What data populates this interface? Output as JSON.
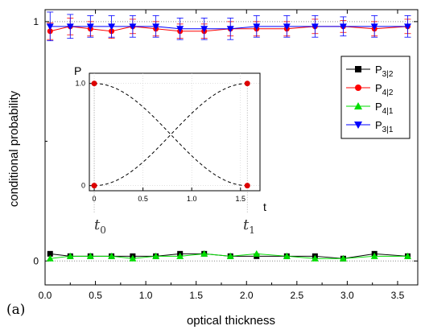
{
  "chart_data": [
    {
      "type": "line",
      "panel_label": "(a)",
      "xlabel": "optical thickness",
      "ylabel": "conditional probability",
      "xlim": [
        0,
        3.7
      ],
      "ylim": [
        -0.1,
        1.05
      ],
      "xticks": [
        "0.0",
        "0.5",
        "1.0",
        "1.5",
        "2.0",
        "2.5",
        "3.0",
        "3.5"
      ],
      "yticks": [
        "0",
        "1"
      ],
      "x": [
        0.05,
        0.25,
        0.45,
        0.66,
        0.87,
        1.1,
        1.34,
        1.58,
        1.84,
        2.1,
        2.4,
        2.68,
        2.96,
        3.27,
        3.6
      ],
      "series": [
        {
          "name": "P",
          "sub": "3|2",
          "color": "#000000",
          "marker": "square",
          "values": [
            0.03,
            0.02,
            0.02,
            0.02,
            0.02,
            0.02,
            0.03,
            0.03,
            0.02,
            0.02,
            0.02,
            0.02,
            0.01,
            0.03,
            0.02
          ]
        },
        {
          "name": "P",
          "sub": "4|2",
          "color": "#ff0000",
          "marker": "circle",
          "values": [
            0.96,
            0.98,
            0.97,
            0.96,
            0.98,
            0.97,
            0.96,
            0.96,
            0.97,
            0.97,
            0.97,
            0.98,
            0.98,
            0.97,
            0.98
          ],
          "err": [
            0.035,
            0.035,
            0.03,
            0.03,
            0.03,
            0.03,
            0.03,
            0.03,
            0.03,
            0.03,
            0.03,
            0.03,
            0.025,
            0.03,
            0.03
          ]
        },
        {
          "name": "P",
          "sub": "4|1",
          "color": "#00dd00",
          "marker": "triangle-up",
          "values": [
            0.01,
            0.02,
            0.02,
            0.02,
            0.01,
            0.02,
            0.02,
            0.03,
            0.02,
            0.03,
            0.02,
            0.01,
            0.01,
            0.02,
            0.02
          ]
        },
        {
          "name": "P",
          "sub": "3|1",
          "color": "#0000ff",
          "marker": "triangle-down",
          "values": [
            0.98,
            0.98,
            0.98,
            0.98,
            0.98,
            0.98,
            0.97,
            0.97,
            0.97,
            0.98,
            0.98,
            0.98,
            0.98,
            0.98,
            0.98
          ],
          "err": [
            0.06,
            0.05,
            0.045,
            0.045,
            0.045,
            0.045,
            0.045,
            0.045,
            0.045,
            0.045,
            0.045,
            0.045,
            0.04,
            0.045,
            0.045
          ]
        }
      ],
      "reference_lines": [
        0,
        1
      ],
      "legend_position": "right"
    },
    {
      "type": "line",
      "role": "inset",
      "ylabel": "P",
      "xlabel": "t",
      "xlim": [
        -0.05,
        1.7
      ],
      "ylim": [
        -0.05,
        1.1
      ],
      "xticks": [
        "0",
        "0.5",
        "1.0",
        "1.5"
      ],
      "yticks": [
        "0",
        "1.0"
      ],
      "t0_label": "t0",
      "t1_label": "t1",
      "t1_value": 1.57,
      "curves": [
        {
          "shape": "cos^2",
          "style": "dashed",
          "color": "#000000"
        },
        {
          "shape": "sin^2",
          "style": "dashed",
          "color": "#000000"
        }
      ],
      "points": [
        {
          "x": 0,
          "y": 1
        },
        {
          "x": 0,
          "y": 0
        },
        {
          "x": 1.57,
          "y": 1
        },
        {
          "x": 1.57,
          "y": 0
        }
      ],
      "point_color": "#dd0000"
    }
  ]
}
